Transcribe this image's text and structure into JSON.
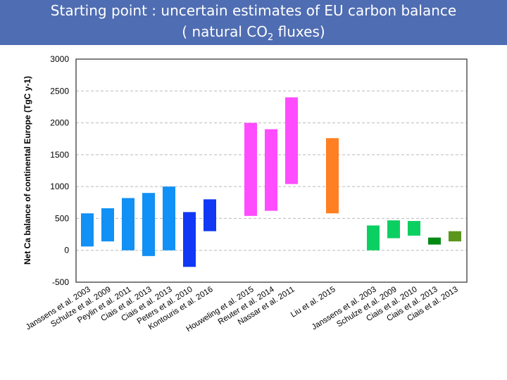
{
  "slide": {
    "title_line1": "Starting point : uncertain estimates of EU carbon balance",
    "title_line2_pre": "( natural CO",
    "title_line2_sub": "2",
    "title_line2_post": " fluxes)"
  },
  "chart_data": {
    "type": "bar",
    "subtype": "floating-range",
    "ylabel": "Net Ca balance  of continental Europe (TgC y-1)",
    "ylim": [
      -500,
      3000
    ],
    "yticks": [
      3000,
      2500,
      2000,
      1500,
      1000,
      500,
      0,
      -500
    ],
    "grid": "horizontal dashed",
    "categories": [
      "Janssens et al. 2003",
      "Schulze et al. 2009",
      "Peylin et al. 2011",
      "Ciais et al. 2013",
      "Ciais et al. 2013",
      "Peters et al. 2010",
      "Kontouris et al. 2016",
      "Houweling et al. 2015",
      "Reuter et al. 2014",
      "Nassar et al. 2011",
      "Liu et al. 2015",
      "Janssens et al. 2003",
      "Schulze et al. 2009",
      "Ciais et al. 2010",
      "Ciais et al. 2013",
      "Ciais et al. 2013"
    ],
    "low": [
      60,
      140,
      0,
      -90,
      0,
      -260,
      300,
      540,
      620,
      1040,
      580,
      0,
      190,
      230,
      90,
      140
    ],
    "high": [
      580,
      660,
      820,
      900,
      1000,
      600,
      800,
      2000,
      1900,
      2400,
      1760,
      390,
      470,
      460,
      200,
      300
    ],
    "colors": [
      "#1190f5",
      "#1190f5",
      "#1190f5",
      "#1190f5",
      "#1190f5",
      "#1138f5",
      "#1138f5",
      "#ff4cff",
      "#ff4cff",
      "#ff4cff",
      "#ff7f22",
      "#0ccf62",
      "#0ccf62",
      "#0ccf62",
      "#008a14",
      "#5a961c"
    ]
  }
}
